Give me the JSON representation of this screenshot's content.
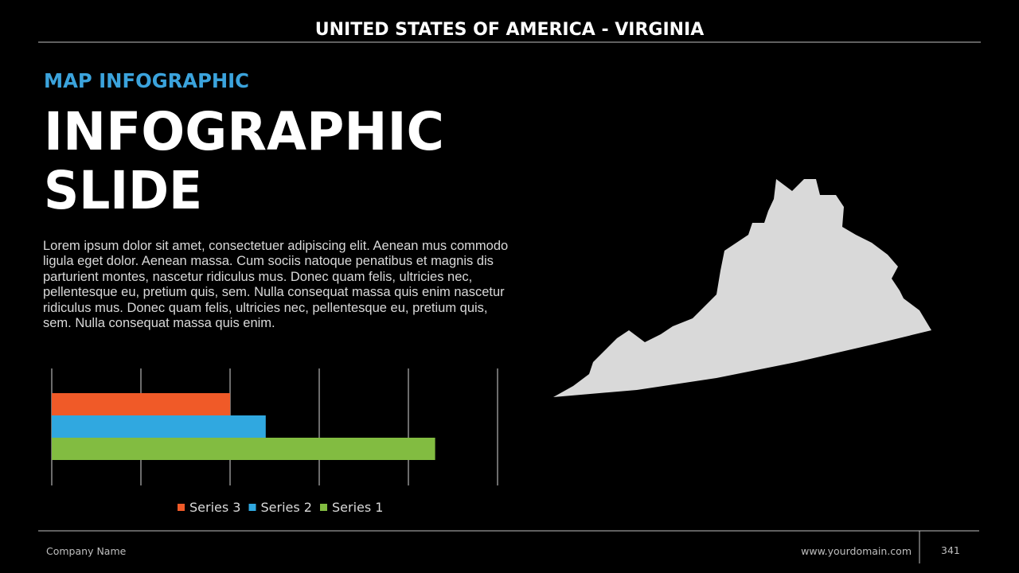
{
  "header": {
    "title": "UNITED STATES OF AMERICA - VIRGINIA"
  },
  "kicker": "MAP INFOGRAPHIC",
  "headline": [
    "INFOGRAPHIC",
    "SLIDE"
  ],
  "body": "Lorem ipsum dolor sit amet, consectetuer adipiscing elit. Aenean mus commodo ligula eget dolor. Aenean massa. Cum sociis natoque penatibus et magnis dis parturient montes, nascetur ridiculus mus. Donec quam felis, ultricies nec, pellentesque eu, pretium quis, sem. Nulla consequat massa quis enim nascetur ridiculus mus. Donec quam felis, ultricies nec, pellentesque eu, pretium quis, sem. Nulla consequat massa quis enim.",
  "chart_data": {
    "type": "hbar",
    "categories": [
      null
    ],
    "series": [
      {
        "name": "Series 1",
        "color": "#82bc41",
        "values": [
          4.3
        ]
      },
      {
        "name": "Series 2",
        "color": "#30a8e0",
        "values": [
          2.4
        ]
      },
      {
        "name": "Series 3",
        "color": "#f05a28",
        "values": [
          2
        ]
      }
    ],
    "xlim": [
      0,
      5
    ],
    "xticks": [
      0,
      1,
      2,
      3,
      4,
      5
    ],
    "grid": true,
    "legend": "bottom"
  },
  "footer": {
    "company": "Company Name",
    "domain": "www.yourdomain.com",
    "page": "341"
  }
}
